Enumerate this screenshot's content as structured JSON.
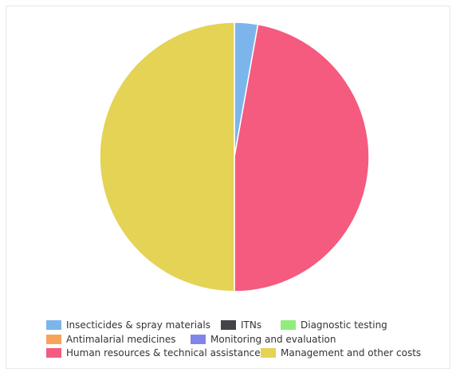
{
  "chart_data": {
    "type": "pie",
    "title": "",
    "legend_position": "bottom",
    "series": [
      {
        "name": "Insecticides & spray materials",
        "value": 2.8,
        "color": "#7cb5ec"
      },
      {
        "name": "ITNs",
        "value": 0.0,
        "color": "#434348"
      },
      {
        "name": "Diagnostic testing",
        "value": 0.0,
        "color": "#90ed7d"
      },
      {
        "name": "Antimalarial medicines",
        "value": 0.0,
        "color": "#f7a35c"
      },
      {
        "name": "Monitoring and evaluation",
        "value": 0.0,
        "color": "#8085e9"
      },
      {
        "name": "Human resources & technical assistance",
        "value": 47.2,
        "color": "#f45b7f"
      },
      {
        "name": "Management and other costs",
        "value": 50.0,
        "color": "#e4d354"
      }
    ]
  }
}
